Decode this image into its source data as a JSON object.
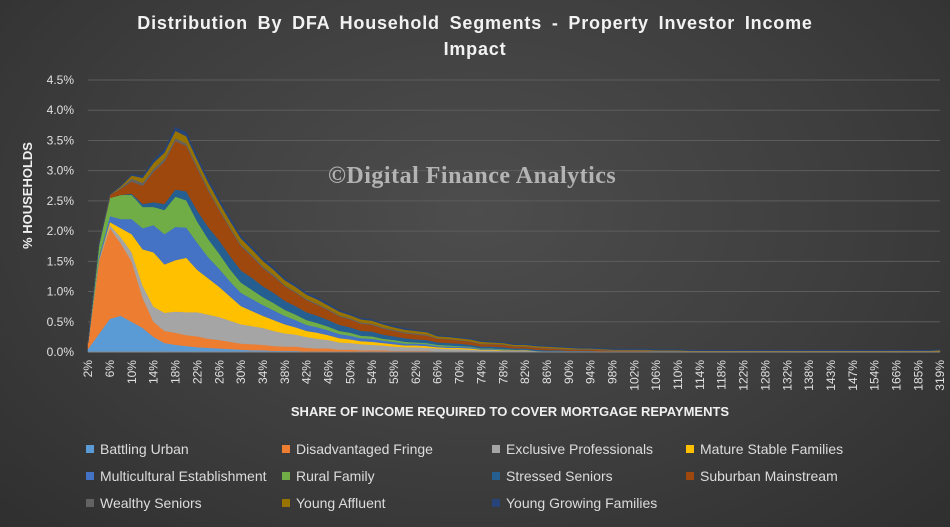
{
  "chart_data": {
    "type": "area",
    "stacked": true,
    "title": "Distribution By DFA Household Segments - Property Investor Income Impact",
    "ylabel": "% HOUSEHOLDS",
    "xlabel": "SHARE OF INCOME REQUIRED TO COVER MORTGAGE REPAYMENTS",
    "watermark": "©Digital Finance Analytics",
    "ylim": [
      0,
      4.5
    ],
    "yticks": [
      "0.0%",
      "0.5%",
      "1.0%",
      "1.5%",
      "2.0%",
      "2.5%",
      "3.0%",
      "3.5%",
      "4.0%",
      "4.5%"
    ],
    "xticks": [
      "2%",
      "6%",
      "10%",
      "14%",
      "18%",
      "22%",
      "26%",
      "30%",
      "34%",
      "38%",
      "42%",
      "46%",
      "50%",
      "54%",
      "58%",
      "62%",
      "66%",
      "70%",
      "74%",
      "78%",
      "82%",
      "86%",
      "90%",
      "94%",
      "98%",
      "102%",
      "106%",
      "110%",
      "114%",
      "118%",
      "122%",
      "128%",
      "132%",
      "138%",
      "143%",
      "147%",
      "154%",
      "166%",
      "185%",
      "319%"
    ],
    "grid": true,
    "legend_position": "bottom",
    "x": [
      1,
      2,
      3,
      4,
      5,
      6,
      7,
      8,
      9,
      10,
      11,
      12,
      13,
      14,
      15,
      16,
      17,
      18,
      19,
      20,
      21,
      22,
      23,
      24,
      25,
      26,
      27,
      28,
      29,
      30,
      31,
      32,
      33,
      34,
      35,
      36,
      37,
      38,
      39,
      40,
      41,
      42,
      43,
      44,
      45,
      46,
      47,
      48,
      49,
      50,
      51,
      52,
      53,
      54,
      55,
      56,
      57,
      58,
      59,
      60,
      61,
      62,
      63,
      64,
      65,
      66,
      67,
      68,
      69,
      70,
      71,
      72,
      73,
      74,
      75,
      76,
      77,
      78,
      79
    ],
    "series": [
      {
        "name": "Battling Urban",
        "color": "#5b9bd5",
        "values": [
          0.05,
          0.3,
          0.55,
          0.6,
          0.5,
          0.4,
          0.25,
          0.15,
          0.12,
          0.1,
          0.08,
          0.07,
          0.06,
          0.05,
          0.04,
          0.03,
          0.03,
          0.02,
          0.02,
          0.02,
          0.01,
          0.01,
          0.01,
          0,
          0,
          0,
          0,
          0,
          0,
          0,
          0,
          0,
          0,
          0,
          0,
          0,
          0,
          0,
          0,
          0,
          0,
          0,
          0,
          0,
          0,
          0,
          0,
          0,
          0,
          0,
          0,
          0,
          0,
          0,
          0,
          0,
          0,
          0,
          0,
          0,
          0,
          0,
          0,
          0,
          0,
          0,
          0,
          0,
          0,
          0,
          0,
          0,
          0,
          0,
          0,
          0,
          0,
          0,
          0
        ]
      },
      {
        "name": "Disadvantaged Fringe",
        "color": "#ed7d31",
        "values": [
          0.1,
          1.2,
          1.5,
          1.2,
          1.0,
          0.5,
          0.25,
          0.2,
          0.2,
          0.18,
          0.18,
          0.15,
          0.14,
          0.12,
          0.1,
          0.1,
          0.09,
          0.08,
          0.07,
          0.07,
          0.06,
          0.05,
          0.05,
          0.04,
          0.04,
          0.03,
          0.03,
          0.03,
          0.02,
          0.02,
          0.02,
          0.02,
          0.01,
          0.01,
          0.01,
          0.01,
          0,
          0,
          0,
          0,
          0,
          0,
          0,
          0,
          0,
          0,
          0,
          0,
          0,
          0,
          0,
          0,
          0,
          0,
          0,
          0,
          0,
          0,
          0,
          0,
          0,
          0,
          0,
          0,
          0,
          0,
          0,
          0,
          0,
          0,
          0,
          0,
          0,
          0,
          0,
          0,
          0,
          0,
          0
        ]
      },
      {
        "name": "Exclusive Professionals",
        "color": "#a5a5a5",
        "values": [
          0,
          0.02,
          0.05,
          0.1,
          0.15,
          0.2,
          0.25,
          0.3,
          0.35,
          0.38,
          0.4,
          0.4,
          0.38,
          0.35,
          0.32,
          0.3,
          0.28,
          0.25,
          0.22,
          0.2,
          0.18,
          0.16,
          0.14,
          0.12,
          0.11,
          0.1,
          0.09,
          0.08,
          0.07,
          0.06,
          0.06,
          0.05,
          0.05,
          0.04,
          0.04,
          0.03,
          0.03,
          0.03,
          0.02,
          0.02,
          0.02,
          0.02,
          0.01,
          0.01,
          0.01,
          0.01,
          0.01,
          0,
          0,
          0,
          0,
          0,
          0,
          0,
          0,
          0,
          0,
          0,
          0,
          0,
          0,
          0,
          0,
          0,
          0,
          0,
          0,
          0,
          0,
          0,
          0,
          0,
          0,
          0,
          0,
          0,
          0,
          0,
          0
        ]
      },
      {
        "name": "Mature Stable Families",
        "color": "#ffc000",
        "values": [
          0,
          0,
          0.05,
          0.15,
          0.3,
          0.6,
          0.9,
          0.8,
          0.85,
          0.9,
          0.7,
          0.6,
          0.5,
          0.4,
          0.3,
          0.25,
          0.2,
          0.18,
          0.15,
          0.12,
          0.1,
          0.1,
          0.08,
          0.07,
          0.06,
          0.05,
          0.05,
          0.04,
          0.04,
          0.03,
          0.03,
          0.03,
          0.02,
          0.02,
          0.02,
          0.02,
          0.01,
          0.01,
          0.01,
          0.01,
          0.01,
          0,
          0,
          0,
          0,
          0,
          0,
          0,
          0,
          0,
          0,
          0,
          0,
          0,
          0,
          0,
          0,
          0,
          0,
          0,
          0,
          0,
          0,
          0,
          0,
          0,
          0,
          0,
          0,
          0,
          0,
          0,
          0,
          0,
          0,
          0,
          0,
          0,
          0
        ]
      },
      {
        "name": "Multicultural Establishment",
        "color": "#4472c4",
        "values": [
          0,
          0.05,
          0.1,
          0.15,
          0.25,
          0.35,
          0.45,
          0.5,
          0.55,
          0.5,
          0.45,
          0.35,
          0.3,
          0.25,
          0.22,
          0.2,
          0.18,
          0.16,
          0.14,
          0.12,
          0.1,
          0.09,
          0.08,
          0.07,
          0.06,
          0.05,
          0.05,
          0.04,
          0.04,
          0.03,
          0.03,
          0.03,
          0.02,
          0.02,
          0.02,
          0.02,
          0.01,
          0.01,
          0.01,
          0.01,
          0.01,
          0,
          0,
          0,
          0,
          0,
          0,
          0,
          0,
          0,
          0,
          0,
          0,
          0,
          0,
          0,
          0,
          0,
          0,
          0,
          0,
          0,
          0,
          0,
          0,
          0,
          0,
          0,
          0,
          0,
          0,
          0,
          0,
          0,
          0,
          0,
          0,
          0,
          0
        ]
      },
      {
        "name": "Rural Family",
        "color": "#70ad47",
        "values": [
          0,
          0.2,
          0.3,
          0.4,
          0.4,
          0.35,
          0.3,
          0.4,
          0.5,
          0.45,
          0.35,
          0.3,
          0.25,
          0.2,
          0.17,
          0.15,
          0.13,
          0.12,
          0.1,
          0.09,
          0.08,
          0.07,
          0.06,
          0.05,
          0.05,
          0.04,
          0.04,
          0.03,
          0.03,
          0.03,
          0.02,
          0.02,
          0.02,
          0.02,
          0.01,
          0.01,
          0.01,
          0.01,
          0.01,
          0,
          0,
          0,
          0,
          0,
          0,
          0,
          0,
          0,
          0,
          0,
          0,
          0,
          0,
          0,
          0,
          0,
          0,
          0,
          0,
          0,
          0,
          0,
          0,
          0,
          0,
          0,
          0,
          0,
          0,
          0,
          0,
          0,
          0,
          0,
          0,
          0,
          0,
          0,
          0
        ]
      },
      {
        "name": "Stressed Seniors",
        "color": "#255e91",
        "values": [
          0,
          0,
          0,
          0,
          0.02,
          0.05,
          0.08,
          0.1,
          0.12,
          0.15,
          0.18,
          0.2,
          0.22,
          0.22,
          0.2,
          0.2,
          0.18,
          0.17,
          0.15,
          0.14,
          0.13,
          0.12,
          0.11,
          0.1,
          0.09,
          0.08,
          0.08,
          0.07,
          0.06,
          0.06,
          0.05,
          0.05,
          0.04,
          0.04,
          0.04,
          0.03,
          0.03,
          0.03,
          0.03,
          0.02,
          0.02,
          0.02,
          0.02,
          0.02,
          0.01,
          0.01,
          0.01,
          0.01,
          0.01,
          0.01,
          0.01,
          0.01,
          0,
          0,
          0,
          0,
          0,
          0,
          0,
          0,
          0,
          0,
          0,
          0,
          0,
          0,
          0,
          0,
          0,
          0,
          0,
          0,
          0,
          0,
          0,
          0,
          0,
          0,
          0
        ]
      },
      {
        "name": "Suburban Mainstream",
        "color": "#9e480e",
        "values": [
          0,
          0,
          0.05,
          0.1,
          0.2,
          0.3,
          0.5,
          0.7,
          0.8,
          0.75,
          0.7,
          0.6,
          0.5,
          0.45,
          0.4,
          0.35,
          0.3,
          0.27,
          0.24,
          0.22,
          0.2,
          0.18,
          0.16,
          0.14,
          0.13,
          0.12,
          0.11,
          0.1,
          0.09,
          0.08,
          0.08,
          0.07,
          0.06,
          0.06,
          0.05,
          0.05,
          0.04,
          0.04,
          0.04,
          0.03,
          0.03,
          0.03,
          0.03,
          0.02,
          0.02,
          0.02,
          0.02,
          0.02,
          0.01,
          0.01,
          0.01,
          0.01,
          0.01,
          0.01,
          0.01,
          0,
          0,
          0,
          0,
          0,
          0,
          0,
          0,
          0,
          0,
          0,
          0,
          0,
          0,
          0,
          0,
          0,
          0,
          0,
          0,
          0,
          0,
          0,
          0
        ]
      },
      {
        "name": "Wealthy Seniors",
        "color": "#636363",
        "values": [
          0,
          0,
          0,
          0.02,
          0.05,
          0.05,
          0.05,
          0.05,
          0.05,
          0.04,
          0.04,
          0.04,
          0.03,
          0.03,
          0.03,
          0.03,
          0.03,
          0.03,
          0.02,
          0.02,
          0.02,
          0.02,
          0.02,
          0.02,
          0.02,
          0.02,
          0.02,
          0.02,
          0.02,
          0.02,
          0.02,
          0.02,
          0.01,
          0.01,
          0.01,
          0.01,
          0.01,
          0.01,
          0.01,
          0.01,
          0.01,
          0.01,
          0.01,
          0.01,
          0.01,
          0.01,
          0.01,
          0.01,
          0.01,
          0.01,
          0.01,
          0.01,
          0.01,
          0.01,
          0.01,
          0.01,
          0.01,
          0.01,
          0.01,
          0.01,
          0.01,
          0.01,
          0.01,
          0.01,
          0.01,
          0.01,
          0.01,
          0.01,
          0.01,
          0.01,
          0.01,
          0.01,
          0.01,
          0.01,
          0.01,
          0.01,
          0.01,
          0.01,
          0.01
        ]
      },
      {
        "name": "Young Affluent",
        "color": "#997300",
        "values": [
          0,
          0,
          0,
          0.02,
          0.05,
          0.08,
          0.1,
          0.1,
          0.12,
          0.12,
          0.1,
          0.1,
          0.1,
          0.1,
          0.1,
          0.09,
          0.09,
          0.08,
          0.08,
          0.08,
          0.07,
          0.07,
          0.06,
          0.06,
          0.05,
          0.05,
          0.05,
          0.05,
          0.04,
          0.04,
          0.04,
          0.04,
          0.03,
          0.03,
          0.03,
          0.03,
          0.03,
          0.02,
          0.02,
          0.02,
          0.02,
          0.02,
          0.02,
          0.02,
          0.02,
          0.01,
          0.01,
          0.01,
          0.01,
          0.01,
          0.01,
          0.01,
          0.01,
          0.01,
          0.01,
          0.01,
          0.01,
          0.01,
          0.01,
          0.01,
          0.01,
          0.01,
          0.01,
          0.01,
          0.01,
          0.01,
          0.01,
          0.01,
          0.01,
          0.01,
          0.01,
          0.01,
          0.01,
          0.01,
          0.01,
          0.01,
          0.01,
          0.01,
          0.02
        ]
      },
      {
        "name": "Young Growing Families",
        "color": "#264478",
        "values": [
          0,
          0,
          0,
          0.01,
          0.02,
          0.03,
          0.05,
          0.05,
          0.06,
          0.06,
          0.05,
          0.05,
          0.05,
          0.05,
          0.04,
          0.04,
          0.04,
          0.04,
          0.03,
          0.03,
          0.03,
          0.03,
          0.03,
          0.02,
          0.02,
          0.02,
          0.02,
          0.02,
          0.02,
          0.02,
          0.01,
          0.01,
          0.01,
          0.01,
          0.01,
          0.01,
          0.01,
          0.01,
          0.01,
          0.01,
          0.01,
          0.01,
          0.01,
          0.01,
          0.01,
          0.01,
          0.01,
          0.01,
          0.01,
          0.01,
          0.01,
          0.01,
          0.01,
          0.01,
          0.01,
          0.01,
          0.01,
          0.01,
          0.01,
          0.01,
          0.01,
          0.01,
          0.01,
          0.01,
          0.01,
          0.01,
          0.01,
          0.01,
          0.01,
          0.01,
          0.01,
          0.01,
          0.01,
          0.01,
          0.01,
          0.01,
          0.01,
          0.01,
          0.01
        ]
      }
    ]
  }
}
